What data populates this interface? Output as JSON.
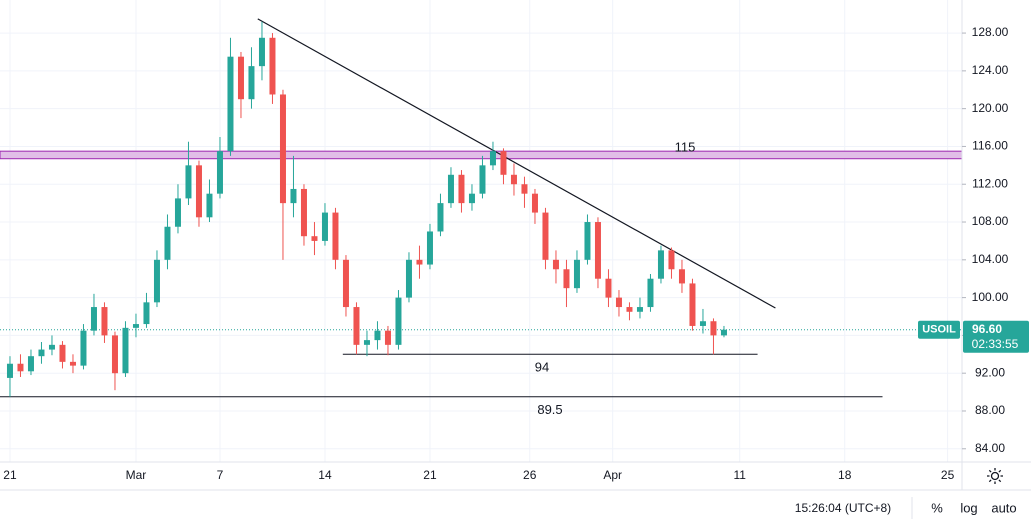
{
  "chart_data": {
    "type": "candlestick",
    "open": [
      91.5,
      93.0,
      92.2,
      93.8,
      94.5,
      95.0,
      93.2,
      92.8,
      96.5,
      99.0,
      96.0,
      92.0,
      96.8,
      97.2,
      99.5,
      104.0,
      107.5,
      110.5,
      114.0,
      108.5,
      111.0,
      115.5,
      125.5,
      121.0,
      124.5,
      127.5,
      121.5,
      110.0,
      111.5,
      106.5,
      106.0,
      109.0,
      104.0,
      99.0,
      95.0,
      95.5,
      96.5,
      95.0,
      100.0,
      104.0,
      103.5,
      107.0,
      110.0,
      113.0,
      110.0,
      111.0,
      114.0,
      115.5,
      113.0,
      112.0,
      111.0,
      109.0,
      104.0,
      103.0,
      101.0,
      104.0,
      108.0,
      102.0,
      100.0,
      99.0,
      98.5,
      99.0,
      102.0,
      105.0,
      103.0,
      101.5,
      97.0,
      97.5,
      96.0
    ],
    "high": [
      93.8,
      94.0,
      94.5,
      95.3,
      96.0,
      95.4,
      94.0,
      97.2,
      100.4,
      99.5,
      96.4,
      97.5,
      98.3,
      100.5,
      105.0,
      108.8,
      112.0,
      116.5,
      114.5,
      112.5,
      117.0,
      127.5,
      126.0,
      126.5,
      129.2,
      128.0,
      122.0,
      115.0,
      112.0,
      108.0,
      110.0,
      109.5,
      104.5,
      99.5,
      96.5,
      97.5,
      97.0,
      100.8,
      104.8,
      105.5,
      107.8,
      111.0,
      113.8,
      113.5,
      112.0,
      115.0,
      116.5,
      115.8,
      114.2,
      112.8,
      111.5,
      109.5,
      105.0,
      104.0,
      105.0,
      108.8,
      108.5,
      103.0,
      100.8,
      99.5,
      100.0,
      102.5,
      105.5,
      105.3,
      104.0,
      102.0,
      98.8,
      97.8,
      97.0
    ],
    "low": [
      89.5,
      91.6,
      91.8,
      93.0,
      93.9,
      92.5,
      92.0,
      92.4,
      96.0,
      95.2,
      90.2,
      91.6,
      95.8,
      96.8,
      99.0,
      103.0,
      106.8,
      109.8,
      107.5,
      108.0,
      110.5,
      115.0,
      119.0,
      120.0,
      123.0,
      120.5,
      104.0,
      108.5,
      105.5,
      104.5,
      105.5,
      103.0,
      98.0,
      94.0,
      93.8,
      94.5,
      93.9,
      94.5,
      99.5,
      102.0,
      103.0,
      106.5,
      109.5,
      109.0,
      109.2,
      110.5,
      113.5,
      112.0,
      110.8,
      109.5,
      107.8,
      103.0,
      101.5,
      99.0,
      100.5,
      103.5,
      101.0,
      99.0,
      98.0,
      97.6,
      97.8,
      98.5,
      101.5,
      102.0,
      100.5,
      96.5,
      96.2,
      94.0,
      95.8
    ],
    "close": [
      93.0,
      92.2,
      93.8,
      94.5,
      95.0,
      93.2,
      92.8,
      96.5,
      99.0,
      96.0,
      92.0,
      96.8,
      97.2,
      99.5,
      104.0,
      107.5,
      110.5,
      114.0,
      108.5,
      111.0,
      115.5,
      125.5,
      121.0,
      124.5,
      127.5,
      121.5,
      110.0,
      111.5,
      106.5,
      106.0,
      109.0,
      104.0,
      99.0,
      95.0,
      95.5,
      96.5,
      95.0,
      100.0,
      104.0,
      103.5,
      107.0,
      110.0,
      113.0,
      110.0,
      111.0,
      114.0,
      115.5,
      113.0,
      112.0,
      111.0,
      109.0,
      104.0,
      103.0,
      101.0,
      104.0,
      108.0,
      102.0,
      100.0,
      99.0,
      98.5,
      99.0,
      102.0,
      105.0,
      103.0,
      101.5,
      97.0,
      97.5,
      96.0,
      96.6
    ],
    "up_color": "#26a69a",
    "down_color": "#ef5350",
    "xlim": [
      -0.95,
      90.67
    ],
    "xticks": [
      {
        "value": 0,
        "label": "21"
      },
      {
        "value": 12,
        "label": "Mar"
      },
      {
        "value": 20,
        "label": "7"
      },
      {
        "value": 30,
        "label": "14"
      },
      {
        "value": 40,
        "label": "21"
      },
      {
        "value": 49.5,
        "label": "26"
      },
      {
        "value": 57.4,
        "label": "Apr"
      },
      {
        "value": 69.5,
        "label": "11"
      },
      {
        "value": 79.5,
        "label": "18"
      },
      {
        "value": 89.3,
        "label": "25"
      }
    ],
    "ylim": [
      82.6,
      131.5
    ],
    "yticks": [
      {
        "value": 84,
        "label": "84.00"
      },
      {
        "value": 88,
        "label": "88.00"
      },
      {
        "value": 92,
        "label": "92.00"
      },
      {
        "value": 96,
        "label": "96.00"
      },
      {
        "value": 100,
        "label": "100.00"
      },
      {
        "value": 104,
        "label": "104.00"
      },
      {
        "value": 108,
        "label": "108.00"
      },
      {
        "value": 112,
        "label": "112.00"
      },
      {
        "value": 116,
        "label": "116.00"
      },
      {
        "value": 120,
        "label": "120.00"
      },
      {
        "value": 124,
        "label": "124.00"
      },
      {
        "value": 128,
        "label": "128.00"
      }
    ],
    "grid": true,
    "zone": {
      "label": "115",
      "ymin": 114.7,
      "ymax": 115.5,
      "color": "#e1bee7"
    },
    "supports": [
      {
        "label": "94",
        "value": 94,
        "x": [
          31.7,
          71.2
        ]
      },
      {
        "label": "89.5",
        "value": 89.5,
        "x": [
          -0.95,
          83.1
        ]
      }
    ],
    "trendline": {
      "x": [
        23.6,
        72.9
      ],
      "y": [
        129.5,
        98.9
      ]
    },
    "last": {
      "symbol": "USOIL",
      "value": 96.6,
      "label": "96.60",
      "countdown": "02:33:55"
    },
    "footer": {
      "time": "15:26:04 (UTC+8)",
      "buttons": [
        "%",
        "log",
        "auto"
      ]
    }
  }
}
